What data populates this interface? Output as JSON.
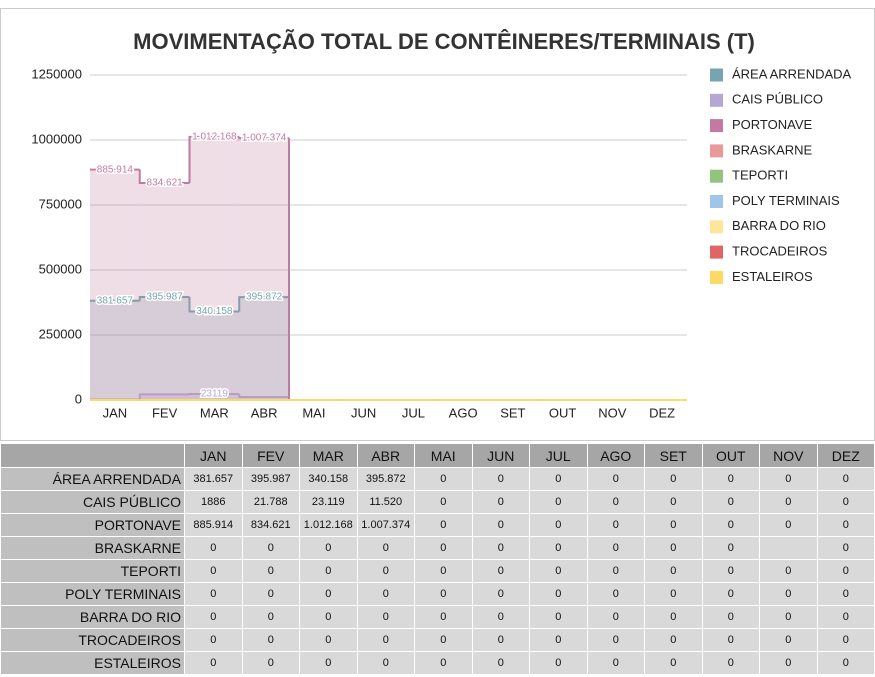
{
  "chart_data": {
    "type": "area",
    "title": "MOVIMENTAÇÃO TOTAL DE CONTÊINERES/TERMINAIS (T)",
    "categories": [
      "JAN",
      "FEV",
      "MAR",
      "ABR",
      "MAI",
      "JUN",
      "JUL",
      "AGO",
      "SET",
      "OUT",
      "NOV",
      "DEZ"
    ],
    "ylim": [
      0,
      1250000
    ],
    "yticks": [
      0,
      250000,
      500000,
      750000,
      1000000,
      1250000
    ],
    "grid": true,
    "legend": "right",
    "series": [
      {
        "name": "ÁREA ARRENDADA",
        "color": "#76a5af",
        "values": [
          381657,
          395987,
          340158,
          395872,
          0,
          0,
          0,
          0,
          0,
          0,
          0,
          0
        ],
        "value_labels": [
          "381.657",
          "395.987",
          "340.158",
          "395.872",
          null,
          null,
          null,
          null,
          null,
          null,
          null,
          null
        ]
      },
      {
        "name": "CAIS PÚBLICO",
        "color": "#b4a7d6",
        "values": [
          1886,
          21788,
          23119,
          11520,
          0,
          0,
          0,
          0,
          0,
          0,
          0,
          0
        ],
        "value_labels": [
          null,
          null,
          "23119",
          null,
          null,
          null,
          null,
          null,
          null,
          null,
          null,
          null
        ]
      },
      {
        "name": "PORTONAVE",
        "color": "#c27ba0",
        "values": [
          885914,
          834621,
          1012168,
          1007374,
          0,
          0,
          0,
          0,
          0,
          0,
          0,
          0
        ],
        "value_labels": [
          "885.914",
          "834.621",
          "1.012.168",
          "1.007.374",
          null,
          null,
          null,
          null,
          null,
          null,
          null,
          null
        ]
      },
      {
        "name": "BRASKARNE",
        "color": "#ea9999",
        "values": [
          0,
          0,
          0,
          0,
          0,
          0,
          0,
          0,
          0,
          0,
          0,
          0
        ]
      },
      {
        "name": "TEPORTI",
        "color": "#93c47d",
        "values": [
          0,
          0,
          0,
          0,
          0,
          0,
          0,
          0,
          0,
          0,
          0,
          0
        ]
      },
      {
        "name": "POLY TERMINAIS",
        "color": "#9fc5e8",
        "values": [
          0,
          0,
          0,
          0,
          0,
          0,
          0,
          0,
          0,
          0,
          0,
          0
        ]
      },
      {
        "name": "BARRA DO RIO",
        "color": "#ffe599",
        "values": [
          0,
          0,
          0,
          0,
          0,
          0,
          0,
          0,
          0,
          0,
          0,
          0
        ]
      },
      {
        "name": "TROCADEIROS",
        "color": "#e06666",
        "values": [
          0,
          0,
          0,
          0,
          0,
          0,
          0,
          0,
          0,
          0,
          0,
          0
        ]
      },
      {
        "name": "ESTALEIROS",
        "color": "#ffd966",
        "values": [
          0,
          0,
          0,
          0,
          0,
          0,
          0,
          0,
          0,
          0,
          0,
          0
        ]
      }
    ]
  },
  "table": {
    "header": [
      "JAN",
      "FEV",
      "MAR",
      "ABR",
      "MAI",
      "JUN",
      "JUL",
      "AGO",
      "SET",
      "OUT",
      "NOV",
      "DEZ"
    ],
    "rows": [
      {
        "label": "ÁREA ARRENDADA",
        "cells": [
          "381.657",
          "395.987",
          "340.158",
          "395.872",
          "0",
          "0",
          "0",
          "0",
          "0",
          "0",
          "0",
          "0"
        ]
      },
      {
        "label": "CAIS PÚBLICO",
        "cells": [
          "1886",
          "21.788",
          "23.119",
          "11.520",
          "0",
          "0",
          "0",
          "0",
          "0",
          "0",
          "0",
          "0"
        ]
      },
      {
        "label": "PORTONAVE",
        "cells": [
          "885.914",
          "834.621",
          "1.012.168",
          "1.007.374",
          "0",
          "0",
          "0",
          "0",
          "0",
          "0",
          "0",
          "0"
        ]
      },
      {
        "label": "BRASKARNE",
        "cells": [
          "0",
          "0",
          "0",
          "0",
          "0",
          "0",
          "0",
          "0",
          "0",
          "0",
          null,
          "0"
        ]
      },
      {
        "label": "TEPORTI",
        "cells": [
          "0",
          "0",
          "0",
          "0",
          "0",
          "0",
          "0",
          "0",
          "0",
          "0",
          "0",
          "0"
        ]
      },
      {
        "label": "POLY TERMINAIS",
        "cells": [
          "0",
          "0",
          "0",
          "0",
          "0",
          "0",
          "0",
          "0",
          "0",
          "0",
          "0",
          "0"
        ]
      },
      {
        "label": "BARRA DO RIO",
        "cells": [
          "0",
          "0",
          "0",
          "0",
          "0",
          "0",
          "0",
          "0",
          "0",
          "0",
          "0",
          "0"
        ]
      },
      {
        "label": "TROCADEIROS",
        "cells": [
          "0",
          "0",
          "0",
          "0",
          "0",
          "0",
          "0",
          "0",
          "0",
          "0",
          "0",
          "0"
        ]
      },
      {
        "label": "ESTALEIROS",
        "cells": [
          "0",
          "0",
          "0",
          "0",
          "0",
          "0",
          "0",
          "0",
          "0",
          "0",
          "0",
          "0"
        ]
      }
    ]
  }
}
